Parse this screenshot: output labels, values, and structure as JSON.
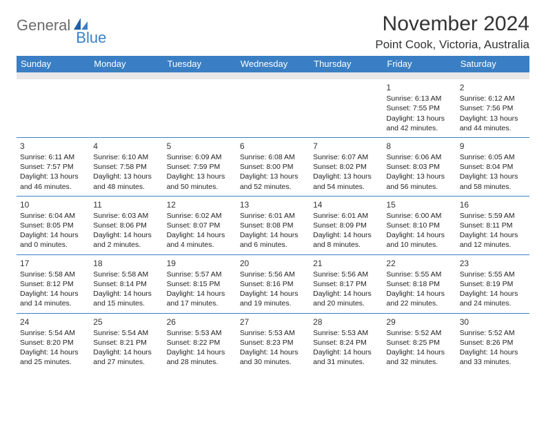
{
  "brand": {
    "part1": "General",
    "part2": "Blue"
  },
  "header": {
    "title": "November 2024",
    "location": "Point Cook, Victoria, Australia"
  },
  "colors": {
    "header_bg": "#3a7fc4",
    "header_text": "#ffffff",
    "gap_bg": "#e8e8e8",
    "row_divider": "#3a7fc4",
    "logo_gray": "#6b6b6b",
    "logo_blue": "#3a7fc4",
    "body_text": "#222222"
  },
  "dayNames": [
    "Sunday",
    "Monday",
    "Tuesday",
    "Wednesday",
    "Thursday",
    "Friday",
    "Saturday"
  ],
  "weeks": [
    [
      null,
      null,
      null,
      null,
      null,
      {
        "n": "1",
        "sr": "Sunrise: 6:13 AM",
        "ss": "Sunset: 7:55 PM",
        "d1": "Daylight: 13 hours",
        "d2": "and 42 minutes."
      },
      {
        "n": "2",
        "sr": "Sunrise: 6:12 AM",
        "ss": "Sunset: 7:56 PM",
        "d1": "Daylight: 13 hours",
        "d2": "and 44 minutes."
      }
    ],
    [
      {
        "n": "3",
        "sr": "Sunrise: 6:11 AM",
        "ss": "Sunset: 7:57 PM",
        "d1": "Daylight: 13 hours",
        "d2": "and 46 minutes."
      },
      {
        "n": "4",
        "sr": "Sunrise: 6:10 AM",
        "ss": "Sunset: 7:58 PM",
        "d1": "Daylight: 13 hours",
        "d2": "and 48 minutes."
      },
      {
        "n": "5",
        "sr": "Sunrise: 6:09 AM",
        "ss": "Sunset: 7:59 PM",
        "d1": "Daylight: 13 hours",
        "d2": "and 50 minutes."
      },
      {
        "n": "6",
        "sr": "Sunrise: 6:08 AM",
        "ss": "Sunset: 8:00 PM",
        "d1": "Daylight: 13 hours",
        "d2": "and 52 minutes."
      },
      {
        "n": "7",
        "sr": "Sunrise: 6:07 AM",
        "ss": "Sunset: 8:02 PM",
        "d1": "Daylight: 13 hours",
        "d2": "and 54 minutes."
      },
      {
        "n": "8",
        "sr": "Sunrise: 6:06 AM",
        "ss": "Sunset: 8:03 PM",
        "d1": "Daylight: 13 hours",
        "d2": "and 56 minutes."
      },
      {
        "n": "9",
        "sr": "Sunrise: 6:05 AM",
        "ss": "Sunset: 8:04 PM",
        "d1": "Daylight: 13 hours",
        "d2": "and 58 minutes."
      }
    ],
    [
      {
        "n": "10",
        "sr": "Sunrise: 6:04 AM",
        "ss": "Sunset: 8:05 PM",
        "d1": "Daylight: 14 hours",
        "d2": "and 0 minutes."
      },
      {
        "n": "11",
        "sr": "Sunrise: 6:03 AM",
        "ss": "Sunset: 8:06 PM",
        "d1": "Daylight: 14 hours",
        "d2": "and 2 minutes."
      },
      {
        "n": "12",
        "sr": "Sunrise: 6:02 AM",
        "ss": "Sunset: 8:07 PM",
        "d1": "Daylight: 14 hours",
        "d2": "and 4 minutes."
      },
      {
        "n": "13",
        "sr": "Sunrise: 6:01 AM",
        "ss": "Sunset: 8:08 PM",
        "d1": "Daylight: 14 hours",
        "d2": "and 6 minutes."
      },
      {
        "n": "14",
        "sr": "Sunrise: 6:01 AM",
        "ss": "Sunset: 8:09 PM",
        "d1": "Daylight: 14 hours",
        "d2": "and 8 minutes."
      },
      {
        "n": "15",
        "sr": "Sunrise: 6:00 AM",
        "ss": "Sunset: 8:10 PM",
        "d1": "Daylight: 14 hours",
        "d2": "and 10 minutes."
      },
      {
        "n": "16",
        "sr": "Sunrise: 5:59 AM",
        "ss": "Sunset: 8:11 PM",
        "d1": "Daylight: 14 hours",
        "d2": "and 12 minutes."
      }
    ],
    [
      {
        "n": "17",
        "sr": "Sunrise: 5:58 AM",
        "ss": "Sunset: 8:12 PM",
        "d1": "Daylight: 14 hours",
        "d2": "and 14 minutes."
      },
      {
        "n": "18",
        "sr": "Sunrise: 5:58 AM",
        "ss": "Sunset: 8:14 PM",
        "d1": "Daylight: 14 hours",
        "d2": "and 15 minutes."
      },
      {
        "n": "19",
        "sr": "Sunrise: 5:57 AM",
        "ss": "Sunset: 8:15 PM",
        "d1": "Daylight: 14 hours",
        "d2": "and 17 minutes."
      },
      {
        "n": "20",
        "sr": "Sunrise: 5:56 AM",
        "ss": "Sunset: 8:16 PM",
        "d1": "Daylight: 14 hours",
        "d2": "and 19 minutes."
      },
      {
        "n": "21",
        "sr": "Sunrise: 5:56 AM",
        "ss": "Sunset: 8:17 PM",
        "d1": "Daylight: 14 hours",
        "d2": "and 20 minutes."
      },
      {
        "n": "22",
        "sr": "Sunrise: 5:55 AM",
        "ss": "Sunset: 8:18 PM",
        "d1": "Daylight: 14 hours",
        "d2": "and 22 minutes."
      },
      {
        "n": "23",
        "sr": "Sunrise: 5:55 AM",
        "ss": "Sunset: 8:19 PM",
        "d1": "Daylight: 14 hours",
        "d2": "and 24 minutes."
      }
    ],
    [
      {
        "n": "24",
        "sr": "Sunrise: 5:54 AM",
        "ss": "Sunset: 8:20 PM",
        "d1": "Daylight: 14 hours",
        "d2": "and 25 minutes."
      },
      {
        "n": "25",
        "sr": "Sunrise: 5:54 AM",
        "ss": "Sunset: 8:21 PM",
        "d1": "Daylight: 14 hours",
        "d2": "and 27 minutes."
      },
      {
        "n": "26",
        "sr": "Sunrise: 5:53 AM",
        "ss": "Sunset: 8:22 PM",
        "d1": "Daylight: 14 hours",
        "d2": "and 28 minutes."
      },
      {
        "n": "27",
        "sr": "Sunrise: 5:53 AM",
        "ss": "Sunset: 8:23 PM",
        "d1": "Daylight: 14 hours",
        "d2": "and 30 minutes."
      },
      {
        "n": "28",
        "sr": "Sunrise: 5:53 AM",
        "ss": "Sunset: 8:24 PM",
        "d1": "Daylight: 14 hours",
        "d2": "and 31 minutes."
      },
      {
        "n": "29",
        "sr": "Sunrise: 5:52 AM",
        "ss": "Sunset: 8:25 PM",
        "d1": "Daylight: 14 hours",
        "d2": "and 32 minutes."
      },
      {
        "n": "30",
        "sr": "Sunrise: 5:52 AM",
        "ss": "Sunset: 8:26 PM",
        "d1": "Daylight: 14 hours",
        "d2": "and 33 minutes."
      }
    ]
  ]
}
